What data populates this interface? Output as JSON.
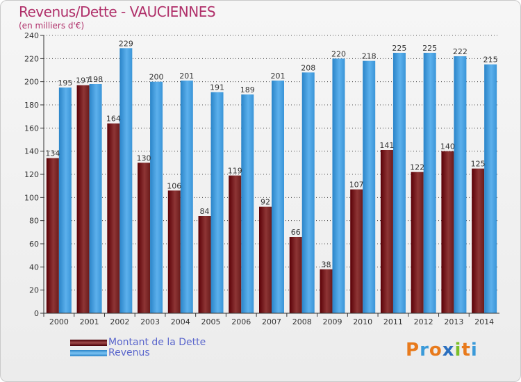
{
  "title": "Revenus/Dette - VAUCIENNES",
  "subtitle": "(en milliers d'€)",
  "colors": {
    "dette_dark": "#5a0006",
    "dette_light": "#8e3535",
    "revenus_dark": "#2a84c8",
    "revenus_light": "#5cb0ec",
    "grid": "#111111",
    "title": "#b0306a",
    "legend_text": "#5a66cc"
  },
  "legend": {
    "items": [
      {
        "label": "Montant de la Dette",
        "color": "#6a1010"
      },
      {
        "label": "Revenus",
        "color": "#4aa3e6"
      }
    ]
  },
  "logo": {
    "letters": [
      "P",
      "r",
      "o",
      "x",
      "i",
      "t",
      "i"
    ],
    "colors": [
      "#e87a1c",
      "#3a9ad9",
      "#e87a1c",
      "#2b6fbf",
      "#7bbf2a",
      "#e87a1c",
      "#3a9ad9"
    ]
  },
  "chart_data": {
    "type": "bar",
    "title": "Revenus/Dette - VAUCIENNES",
    "ylabel": "(en milliers d'€)",
    "xlabel": "",
    "ylim": [
      0,
      240
    ],
    "yticks": [
      0,
      20,
      40,
      60,
      80,
      100,
      120,
      140,
      160,
      180,
      200,
      220,
      240
    ],
    "categories": [
      "2000",
      "2001",
      "2002",
      "2003",
      "2004",
      "2005",
      "2006",
      "2007",
      "2008",
      "2009",
      "2010",
      "2011",
      "2012",
      "2013",
      "2014"
    ],
    "series": [
      {
        "name": "Montant de la Dette",
        "values": [
          134,
          197,
          164,
          130,
          106,
          84,
          119,
          92,
          66,
          38,
          107,
          141,
          122,
          140,
          125
        ]
      },
      {
        "name": "Revenus",
        "values": [
          195,
          198,
          229,
          200,
          201,
          191,
          189,
          201,
          208,
          220,
          218,
          225,
          225,
          222,
          215
        ]
      }
    ],
    "legend_position": "bottom-left",
    "grid": true
  }
}
